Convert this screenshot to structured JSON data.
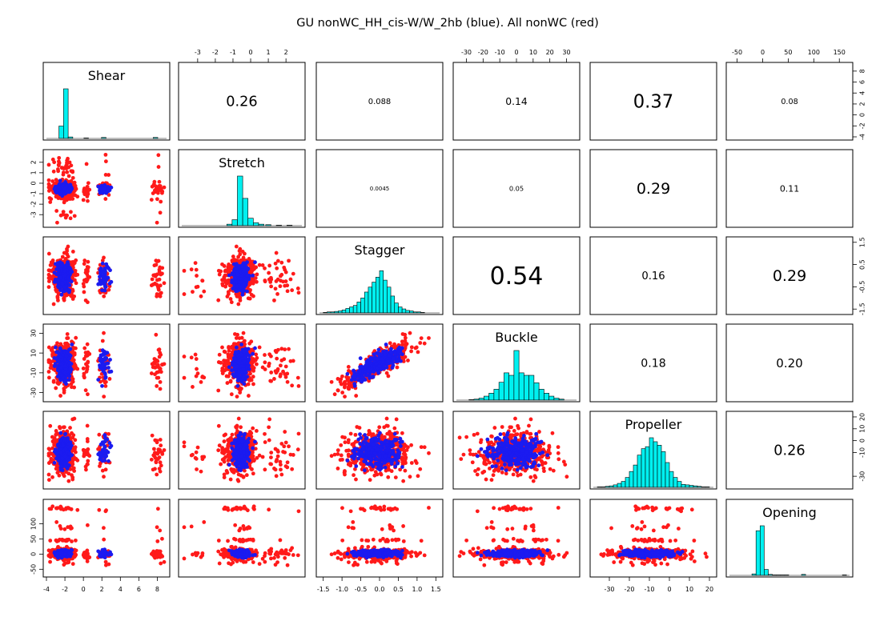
{
  "page": {
    "title": "GU nonWC_HH_cis-W/W_2hb (blue). All nonWC (red)"
  },
  "colors": {
    "blue": "#1b1bf0",
    "red": "#ff1a1a",
    "hist": "#00f0f0",
    "frame": "#000000"
  },
  "chart_data": {
    "type": "scatter",
    "title": "GU nonWC_HH_cis-W/W_2hb (blue). All nonWC (red)",
    "variables": [
      "Shear",
      "Stretch",
      "Stagger",
      "Buckle",
      "Propeller",
      "Opening"
    ],
    "series": [
      {
        "name": "GU nonWC_HH_cis-W/W_2hb",
        "color": "blue"
      },
      {
        "name": "All nonWC",
        "color": "red"
      }
    ],
    "correlations": [
      {
        "row": "Shear",
        "col": "Stretch",
        "value": "0.26"
      },
      {
        "row": "Shear",
        "col": "Stagger",
        "value": "0.088"
      },
      {
        "row": "Shear",
        "col": "Buckle",
        "value": "0.14"
      },
      {
        "row": "Shear",
        "col": "Propeller",
        "value": "0.37"
      },
      {
        "row": "Shear",
        "col": "Opening",
        "value": "0.08"
      },
      {
        "row": "Stretch",
        "col": "Stagger",
        "value": "0.0045"
      },
      {
        "row": "Stretch",
        "col": "Buckle",
        "value": "0.05"
      },
      {
        "row": "Stretch",
        "col": "Propeller",
        "value": "0.29"
      },
      {
        "row": "Stretch",
        "col": "Opening",
        "value": "0.11"
      },
      {
        "row": "Stagger",
        "col": "Buckle",
        "value": "0.54"
      },
      {
        "row": "Stagger",
        "col": "Propeller",
        "value": "0.16"
      },
      {
        "row": "Stagger",
        "col": "Opening",
        "value": "0.29"
      },
      {
        "row": "Buckle",
        "col": "Propeller",
        "value": "0.18"
      },
      {
        "row": "Buckle",
        "col": "Opening",
        "value": "0.20"
      },
      {
        "row": "Propeller",
        "col": "Opening",
        "value": "0.26"
      }
    ],
    "axes": {
      "Shear": {
        "range": [
          -4,
          9
        ],
        "ticks": [
          "-4",
          "-2",
          "0",
          "2",
          "4",
          "6",
          "8"
        ]
      },
      "Stretch": {
        "range": [
          -3.9,
          2.9
        ],
        "ticks": [
          "-3",
          "-2",
          "-1",
          "0",
          "1",
          "2"
        ]
      },
      "Stagger": {
        "range": [
          -1.6,
          1.6
        ],
        "ticks": [
          "-1.5",
          "-1.0",
          "-0.5",
          "0.0",
          "0.5",
          "1.0",
          "1.5"
        ]
      },
      "Buckle": {
        "range": [
          -36,
          36
        ],
        "ticks": [
          "-30",
          "-20",
          "-10",
          "0",
          "10",
          "20",
          "30"
        ]
      },
      "Propeller": {
        "range": [
          -38,
          22
        ],
        "ticks": [
          "-30",
          "-20",
          "-10",
          "0",
          "10",
          "20"
        ]
      },
      "Opening": {
        "range": [
          -65,
          170
        ],
        "ticks": [
          "-50",
          "0",
          "50",
          "100",
          "150"
        ]
      }
    },
    "side_ticks": {
      "Shear": [
        "-4",
        "-2",
        "0",
        "2",
        "4",
        "6",
        "8"
      ],
      "Stretch": [
        "-3",
        "-2",
        "-1",
        "0",
        "1",
        "2"
      ],
      "Stagger": [
        "-1.5",
        "-0.5",
        "0.5",
        "1.5"
      ],
      "Buckle": [
        "-30",
        "-10",
        "10",
        "30"
      ],
      "Propeller": [
        "-30",
        "-10",
        "0",
        "10",
        "20"
      ],
      "Opening": [
        "-50",
        "0",
        "50",
        "100"
      ]
    },
    "histograms": {
      "Shear": {
        "centers": [
          -2.4,
          -1.9,
          -1.4,
          0.3,
          2.2,
          7.8
        ],
        "counts": [
          0.25,
          1.0,
          0.03,
          0.01,
          0.02,
          0.02
        ]
      },
      "Stretch": {
        "centers": [
          -1.2,
          -0.9,
          -0.6,
          -0.3,
          0.0,
          0.3,
          0.6,
          1.0,
          1.6,
          2.2
        ],
        "counts": [
          0.03,
          0.12,
          1.0,
          0.55,
          0.15,
          0.06,
          0.03,
          0.02,
          0.01,
          0.01
        ]
      },
      "Stagger": {
        "centers": [
          -1.45,
          -1.35,
          -1.25,
          -1.15,
          -1.05,
          -0.95,
          -0.85,
          -0.75,
          -0.65,
          -0.55,
          -0.45,
          -0.35,
          -0.25,
          -0.15,
          -0.05,
          0.05,
          0.15,
          0.25,
          0.35,
          0.45,
          0.55,
          0.65,
          0.75,
          0.85,
          0.95,
          1.05,
          1.15
        ],
        "counts": [
          0.01,
          0.02,
          0.02,
          0.03,
          0.04,
          0.06,
          0.09,
          0.12,
          0.15,
          0.22,
          0.3,
          0.42,
          0.52,
          0.62,
          0.72,
          0.85,
          0.66,
          0.52,
          0.34,
          0.2,
          0.12,
          0.08,
          0.05,
          0.04,
          0.02,
          0.02,
          0.01
        ]
      },
      "Buckle": {
        "centers": [
          -27,
          -24,
          -21,
          -18,
          -15,
          -12,
          -9,
          -6,
          -3,
          0,
          3,
          6,
          9,
          12,
          15,
          18,
          21,
          24,
          27
        ],
        "counts": [
          0.01,
          0.02,
          0.04,
          0.08,
          0.14,
          0.22,
          0.36,
          0.55,
          0.5,
          1.0,
          0.55,
          0.5,
          0.5,
          0.35,
          0.22,
          0.14,
          0.08,
          0.04,
          0.02
        ]
      },
      "Propeller": {
        "centers": [
          -35,
          -33,
          -31,
          -29,
          -27,
          -25,
          -23,
          -21,
          -19,
          -17,
          -15,
          -13,
          -11,
          -9,
          -7,
          -5,
          -3,
          -1,
          1,
          3,
          5,
          7,
          9,
          11,
          13,
          15,
          17,
          19
        ],
        "counts": [
          0.01,
          0.01,
          0.02,
          0.03,
          0.05,
          0.08,
          0.12,
          0.2,
          0.32,
          0.45,
          0.65,
          0.78,
          0.82,
          1.0,
          0.92,
          0.85,
          0.72,
          0.5,
          0.32,
          0.2,
          0.12,
          0.06,
          0.05,
          0.04,
          0.03,
          0.02,
          0.01,
          0.01
        ]
      },
      "Opening": {
        "centers": [
          -17,
          -9,
          -1,
          7,
          15,
          23,
          31,
          39,
          47,
          80,
          160
        ],
        "counts": [
          0.03,
          0.9,
          1.0,
          0.12,
          0.02,
          0.01,
          0.01,
          0.01,
          0.01,
          0.02,
          0.01
        ]
      }
    },
    "distributions": {
      "red": {
        "Shear": {
          "clusters": [
            [
              -2.2,
              0.6,
              0.72
            ],
            [
              -1.4,
              0.3,
              0.08
            ],
            [
              0.3,
              0.25,
              0.06
            ],
            [
              2.3,
              0.3,
              0.05
            ],
            [
              7.9,
              0.4,
              0.09
            ]
          ]
        },
        "Stretch": {
          "mean": -0.55,
          "sd": 0.45,
          "tail": [
            [
              2.0,
              0.3,
              0.04
            ],
            [
              -3.2,
              0.4,
              0.03
            ],
            [
              1.2,
              0.3,
              0.04
            ]
          ]
        },
        "Stagger": {
          "mean": 0.0,
          "sd": 0.45
        },
        "Buckle": {
          "mean": 0.0,
          "sd": 10
        },
        "Propeller": {
          "mean": -10,
          "sd": 9
        },
        "Opening": {
          "mean": 0,
          "sd": 8,
          "tail": [
            [
              45,
              3,
              0.04
            ],
            [
              150,
              3,
              0.04
            ],
            [
              -30,
              4,
              0.03
            ],
            [
              90,
              6,
              0.02
            ]
          ]
        }
      },
      "blue": {
        "Shear": {
          "clusters": [
            [
              -2.1,
              0.35,
              0.9
            ],
            [
              2.2,
              0.25,
              0.1
            ]
          ]
        },
        "Stretch": {
          "mean": -0.55,
          "sd": 0.22
        },
        "Stagger": {
          "mean": -0.05,
          "sd": 0.3
        },
        "Buckle": {
          "mean": 0,
          "sd": 8
        },
        "Propeller": {
          "mean": -10,
          "sd": 6
        },
        "Opening": {
          "mean": 2,
          "sd": 5
        }
      }
    }
  }
}
